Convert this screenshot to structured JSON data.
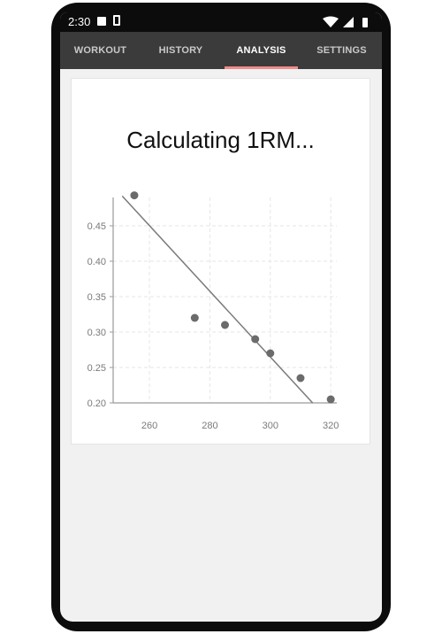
{
  "status_bar": {
    "time": "2:30",
    "icons": [
      "image-icon",
      "lock-icon",
      "wifi-icon",
      "signal-icon",
      "battery-icon"
    ]
  },
  "tabs": [
    {
      "label": "WORKOUT",
      "active": false
    },
    {
      "label": "HISTORY",
      "active": false
    },
    {
      "label": "ANALYSIS",
      "active": true
    },
    {
      "label": "SETTINGS",
      "active": false
    }
  ],
  "analysis": {
    "title": "Calculating 1RM..."
  },
  "colors": {
    "tab_bar": "#3b3b3b",
    "tab_indicator": "#f28b8b",
    "point": "#6b6b6b",
    "trend_line": "#7a7a7a"
  },
  "chart_data": {
    "type": "scatter",
    "title": "",
    "xlabel": "",
    "ylabel": "",
    "xlim": [
      248,
      322
    ],
    "ylim": [
      0.2,
      0.49
    ],
    "x_ticks": [
      260,
      280,
      300,
      320
    ],
    "y_ticks": [
      0.2,
      0.25,
      0.3,
      0.35,
      0.4,
      0.45
    ],
    "grid": true,
    "points": [
      {
        "x": 255,
        "y": 0.493
      },
      {
        "x": 275,
        "y": 0.32
      },
      {
        "x": 285,
        "y": 0.31
      },
      {
        "x": 295,
        "y": 0.29
      },
      {
        "x": 300,
        "y": 0.27
      },
      {
        "x": 310,
        "y": 0.235
      },
      {
        "x": 320,
        "y": 0.205
      }
    ],
    "trend_line": {
      "x_start": 251,
      "y_start": 0.492,
      "x_end": 314,
      "y_end": 0.2
    }
  }
}
